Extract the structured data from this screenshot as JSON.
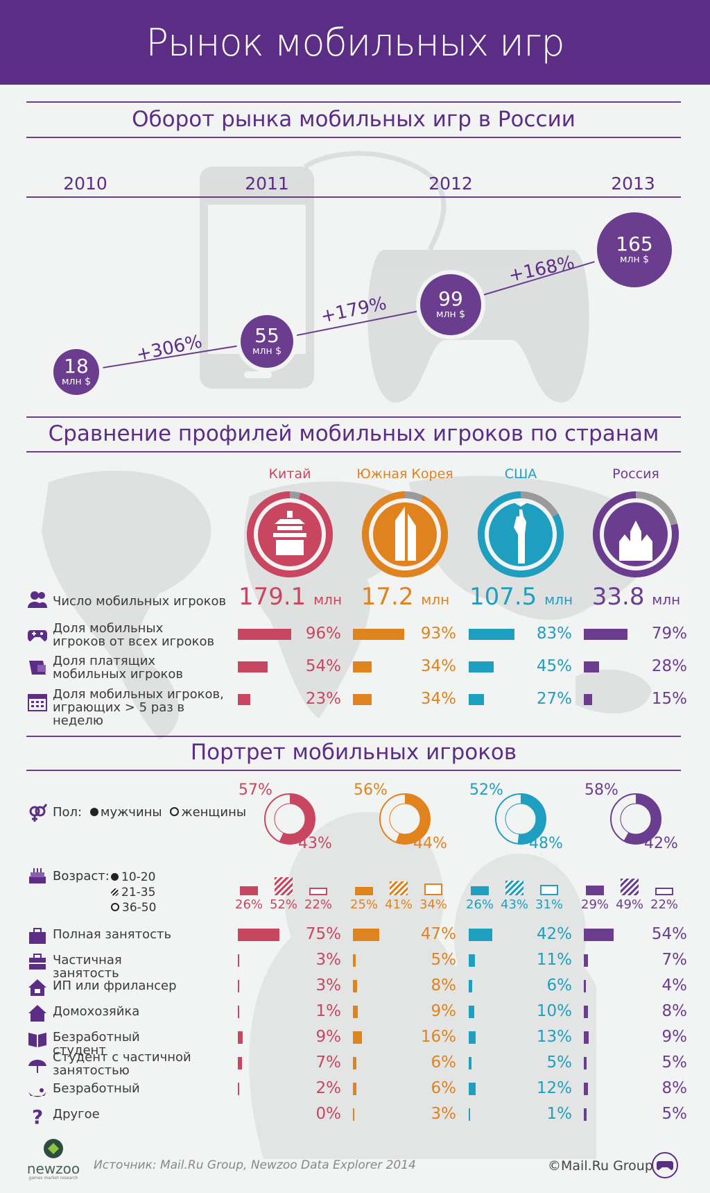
{
  "title": "Рынок мобильных игр",
  "section1": {
    "title": "Оборот рынка мобильных игр в России",
    "years": [
      "2010",
      "2011",
      "2012",
      "2013"
    ],
    "unit": "млн $",
    "growth": [
      "+306%",
      "+179%",
      "+168%"
    ]
  },
  "section2": {
    "title": "Сравнение профилей мобильных игроков по странам",
    "rows": [
      "Число мобильных игроков",
      "Доля мобильных игроков от всех игроков",
      "Доля платящих мобильных игроков",
      "Доля мобильных игроков, играющих > 5 раз в неделю"
    ],
    "players_unit": "млн"
  },
  "section3": {
    "title": "Портрет мобильных игроков",
    "gender_label": "Пол:",
    "male_label": "мужчины",
    "female_label": "женщины",
    "age_label": "Возраст:",
    "age_groups": [
      "10-20",
      "21-35",
      "36-50"
    ],
    "occupations": [
      "Полная занятость",
      "Частичная занятость",
      "ИП или фрилансер",
      "Домохозяйка",
      "Безработный студент",
      "Студент с частичной занятостью",
      "Безработный",
      "Другое"
    ]
  },
  "colors": {
    "purple": "#5b2d85",
    "china": "#c8465f",
    "korea": "#e0821e",
    "usa": "#1e9fc0",
    "russia": "#6b3d8f",
    "gray": "#9a9a9a"
  },
  "icons": [
    "people-icon",
    "gamepad-icon",
    "wallet-icon",
    "calendar-icon",
    "gender-icon",
    "cake-icon",
    "briefcase-icon",
    "house-icon",
    "book-icon",
    "umbrella-icon",
    "question-icon",
    "phone-icon",
    "temple-icon",
    "skyscraper-icon",
    "statue-of-liberty-icon",
    "kremlin-icon"
  ],
  "chart_data": [
    {
      "type": "line",
      "title": "Оборот рынка мобильных игр в России",
      "x": [
        "2010",
        "2011",
        "2012",
        "2013"
      ],
      "series": [
        {
          "values": [
            18,
            55,
            99,
            165
          ]
        }
      ],
      "data_labels": [
        "18",
        "55",
        "99",
        "165"
      ],
      "unit": "млн $",
      "annotations": [
        "+306%",
        "+179%",
        "+168%"
      ]
    },
    {
      "type": "bar",
      "title": "Сравнение профилей мобильных игроков по странам",
      "categories": [
        "Китай",
        "Южная Корея",
        "США",
        "Россия"
      ],
      "players": {
        "values": [
          179.1,
          17.2,
          107.5,
          33.8
        ],
        "labels": [
          "179.1",
          "17.2",
          "107.5",
          "33.8"
        ],
        "unit": "млн"
      },
      "series": [
        {
          "name": "Доля мобильных игроков от всех игроков",
          "values": [
            96,
            93,
            83,
            79
          ],
          "labels": [
            "96%",
            "93%",
            "83%",
            "79%"
          ]
        },
        {
          "name": "Доля платящих мобильных игроков",
          "values": [
            54,
            34,
            45,
            28
          ],
          "labels": [
            "54%",
            "34%",
            "45%",
            "28%"
          ]
        },
        {
          "name": "Доля мобильных игроков, играющих > 5 раз в неделю",
          "values": [
            23,
            34,
            27,
            15
          ],
          "labels": [
            "23%",
            "34%",
            "27%",
            "15%"
          ]
        }
      ]
    },
    {
      "type": "bar",
      "title": "Портрет мобильных игроков",
      "categories": [
        "Китай",
        "Южная Корея",
        "США",
        "Россия"
      ],
      "gender": {
        "male": [
          57,
          56,
          52,
          58
        ],
        "female": [
          43,
          44,
          48,
          42
        ],
        "male_labels": [
          "57%",
          "56%",
          "52%",
          "58%"
        ],
        "female_labels": [
          "43%",
          "44%",
          "48%",
          "42%"
        ]
      },
      "age": {
        "groups": [
          "10-20",
          "21-35",
          "36-50"
        ],
        "values": [
          [
            26,
            52,
            22
          ],
          [
            25,
            41,
            34
          ],
          [
            26,
            43,
            31
          ],
          [
            29,
            49,
            22
          ]
        ],
        "labels": [
          [
            "26%",
            "52%",
            "22%"
          ],
          [
            "25%",
            "41%",
            "34%"
          ],
          [
            "26%",
            "43%",
            "31%"
          ],
          [
            "29%",
            "49%",
            "22%"
          ]
        ]
      },
      "series": [
        {
          "name": "Полная занятость",
          "values": [
            75,
            47,
            42,
            54
          ],
          "labels": [
            "75%",
            "47%",
            "42%",
            "54%"
          ]
        },
        {
          "name": "Частичная занятость",
          "values": [
            3,
            5,
            11,
            7
          ],
          "labels": [
            "3%",
            "5%",
            "11%",
            "7%"
          ]
        },
        {
          "name": "ИП или фрилансер",
          "values": [
            3,
            8,
            6,
            4
          ],
          "labels": [
            "3%",
            "8%",
            "6%",
            "4%"
          ]
        },
        {
          "name": "Домохозяйка",
          "values": [
            1,
            9,
            10,
            8
          ],
          "labels": [
            "1%",
            "9%",
            "10%",
            "8%"
          ]
        },
        {
          "name": "Безработный студент",
          "values": [
            9,
            16,
            13,
            9
          ],
          "labels": [
            "9%",
            "16%",
            "13%",
            "9%"
          ]
        },
        {
          "name": "Студент с частичной занятостью",
          "values": [
            7,
            6,
            5,
            5
          ],
          "labels": [
            "7%",
            "6%",
            "5%",
            "5%"
          ]
        },
        {
          "name": "Безработный",
          "values": [
            2,
            6,
            12,
            8
          ],
          "labels": [
            "2%",
            "6%",
            "12%",
            "8%"
          ]
        },
        {
          "name": "Другое",
          "values": [
            0,
            3,
            1,
            5
          ],
          "labels": [
            "0%",
            "3%",
            "1%",
            "5%"
          ]
        }
      ]
    }
  ],
  "footer": {
    "logo": "newzoo",
    "logo_tagline": "games market research",
    "source": "Источник: Mail.Ru Group, Newzoo Data Explorer 2014",
    "copyright": "©Mail.Ru Group"
  }
}
